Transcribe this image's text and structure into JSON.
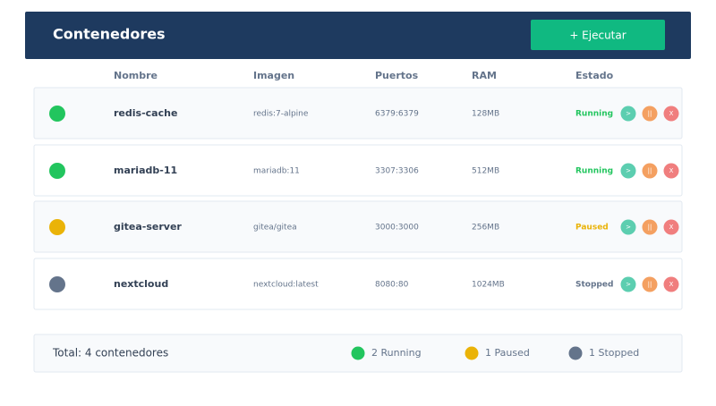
{
  "header": {
    "title": "Contenedores",
    "button": "+ Ejecutar"
  },
  "table": {
    "columns": [
      "Nombre",
      "Imagen",
      "Puertos",
      "RAM",
      "Estado"
    ],
    "actions": [
      ">",
      "||",
      "X"
    ],
    "rows": [
      {
        "name": "redis-cache",
        "image": "redis:7-alpine",
        "ports": "6379:6379",
        "ram": "128MB",
        "status": "Running",
        "color": "#22c55e"
      },
      {
        "name": "mariadb-11",
        "image": "mariadb:11",
        "ports": "3307:3306",
        "ram": "512MB",
        "status": "Running",
        "color": "#22c55e"
      },
      {
        "name": "gitea-server",
        "image": "gitea/gitea",
        "ports": "3000:3000",
        "ram": "256MB",
        "status": "Paused",
        "color": "#eab308"
      },
      {
        "name": "nextcloud",
        "image": "nextcloud:latest",
        "ports": "8080:80",
        "ram": "1024MB",
        "status": "Stopped",
        "color": "#64748b"
      }
    ]
  },
  "footer": {
    "total": "Total: 4 contenedores",
    "legend": [
      {
        "label": "2 Running",
        "color": "#22c55e"
      },
      {
        "label": "1 Paused",
        "color": "#eab308"
      },
      {
        "label": "1 Stopped",
        "color": "#64748b"
      }
    ]
  }
}
